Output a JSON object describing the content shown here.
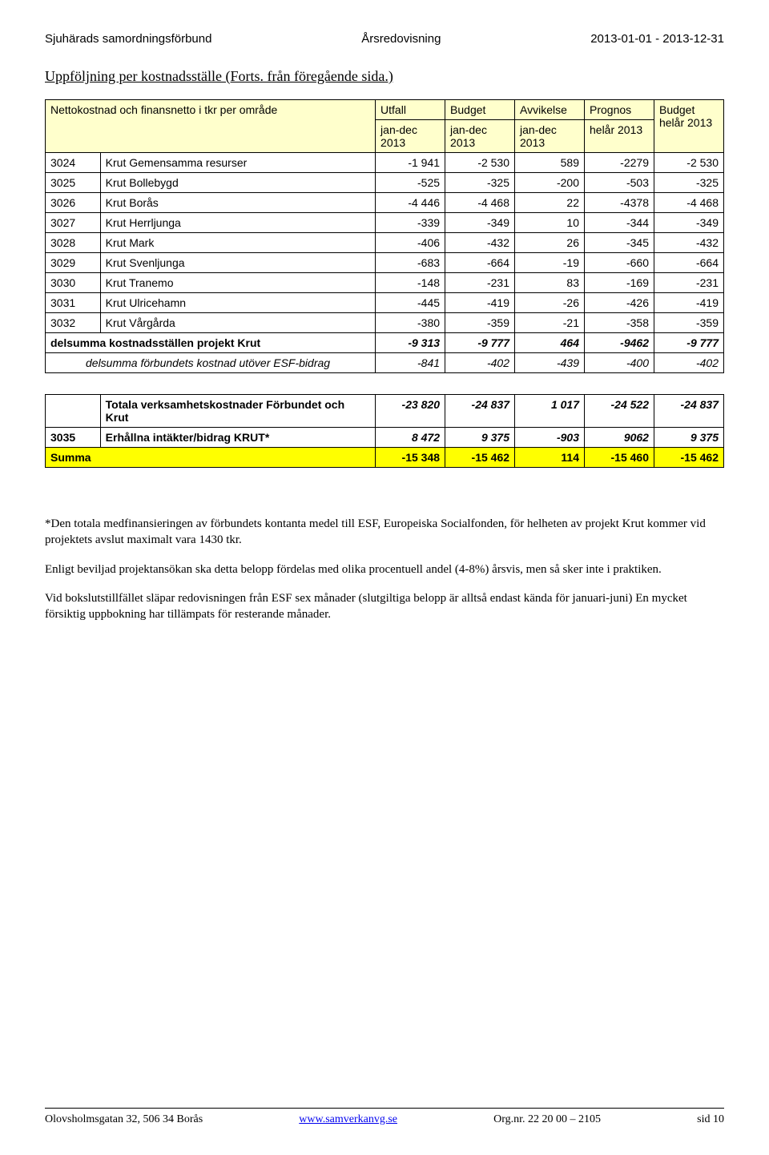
{
  "header": {
    "left": "Sjuhärads samordningsförbund",
    "center": "Årsredovisning",
    "right": "2013-01-01 - 2013-12-31"
  },
  "section_title": "Uppföljning per kostnadsställe  (Forts. från föregående sida.)",
  "table1": {
    "header_row1": [
      "Nettokostnad och finansnetto i tkr per område",
      "Utfall",
      "Budget",
      "Avvikelse",
      "Prognos",
      "Budget helår 2013"
    ],
    "header_row2": [
      "",
      "jan-dec 2013",
      "jan-dec 2013",
      "jan-dec 2013",
      "helår 2013",
      ""
    ],
    "rows": [
      {
        "code": "3024",
        "label": "Krut Gemensamma resurser",
        "v": [
          "-1 941",
          "-2 530",
          "589",
          "-2279",
          "-2 530"
        ]
      },
      {
        "code": "3025",
        "label": "Krut Bollebygd",
        "v": [
          "-525",
          "-325",
          "-200",
          "-503",
          "-325"
        ]
      },
      {
        "code": "3026",
        "label": "Krut Borås",
        "v": [
          "-4 446",
          "-4 468",
          "22",
          "-4378",
          "-4 468"
        ]
      },
      {
        "code": "3027",
        "label": "Krut Herrljunga",
        "v": [
          "-339",
          "-349",
          "10",
          "-344",
          "-349"
        ]
      },
      {
        "code": "3028",
        "label": "Krut Mark",
        "v": [
          "-406",
          "-432",
          "26",
          "-345",
          "-432"
        ]
      },
      {
        "code": "3029",
        "label": "Krut Svenljunga",
        "v": [
          "-683",
          "-664",
          "-19",
          "-660",
          "-664"
        ]
      },
      {
        "code": "3030",
        "label": "Krut Tranemo",
        "v": [
          "-148",
          "-231",
          "83",
          "-169",
          "-231"
        ]
      },
      {
        "code": "3031",
        "label": "Krut Ulricehamn",
        "v": [
          "-445",
          "-419",
          "-26",
          "-426",
          "-419"
        ]
      },
      {
        "code": "3032",
        "label": "Krut Vårgårda",
        "v": [
          "-380",
          "-359",
          "-21",
          "-358",
          "-359"
        ]
      }
    ],
    "subtotal1": {
      "label": "delsumma kostnadsställen projekt Krut",
      "v": [
        "-9 313",
        "-9 777",
        "464",
        "-9462",
        "-9 777"
      ]
    },
    "subtotal2": {
      "label": "delsumma förbundets kostnad utöver ESF-bidrag",
      "v": [
        "-841",
        "-402",
        "-439",
        "-400",
        "-402"
      ]
    }
  },
  "table2": {
    "rows": [
      {
        "code": "",
        "label": "Totala verksamhetskostnader Förbundet och Krut",
        "v": [
          "-23 820",
          "-24 837",
          "1 017",
          "-24 522",
          "-24 837"
        ],
        "bold": true
      },
      {
        "code": "3035",
        "label": "Erhållna intäkter/bidrag KRUT*",
        "v": [
          "8 472",
          "9 375",
          "-903",
          "9062",
          "9 375"
        ],
        "bold": true
      }
    ],
    "summa": {
      "label": "Summa",
      "v": [
        "-15 348",
        "-15 462",
        "114",
        "-15 460",
        "-15 462"
      ]
    }
  },
  "body": {
    "p1": "*Den totala medfinansieringen av förbundets kontanta medel till ESF, Europeiska Socialfonden, för helheten av projekt Krut kommer vid projektets avslut maximalt vara 1430 tkr.",
    "p2": "Enligt beviljad projektansökan ska detta belopp fördelas med olika procentuell andel (4-8%) årsvis, men så sker inte i praktiken.",
    "p3": "Vid bokslutstillfället släpar redovisningen från ESF sex månader (slutgiltiga belopp är alltså endast kända för januari-juni) En mycket försiktig uppbokning har tillämpats för resterande månader."
  },
  "footer": {
    "address": "Olovsholmsgatan 32,  506 34 Borås",
    "link": "www.samverkanvg.se",
    "org": "Org.nr. 22 20 00 – 2105",
    "sid_label": "sid",
    "sid_num": "10"
  }
}
